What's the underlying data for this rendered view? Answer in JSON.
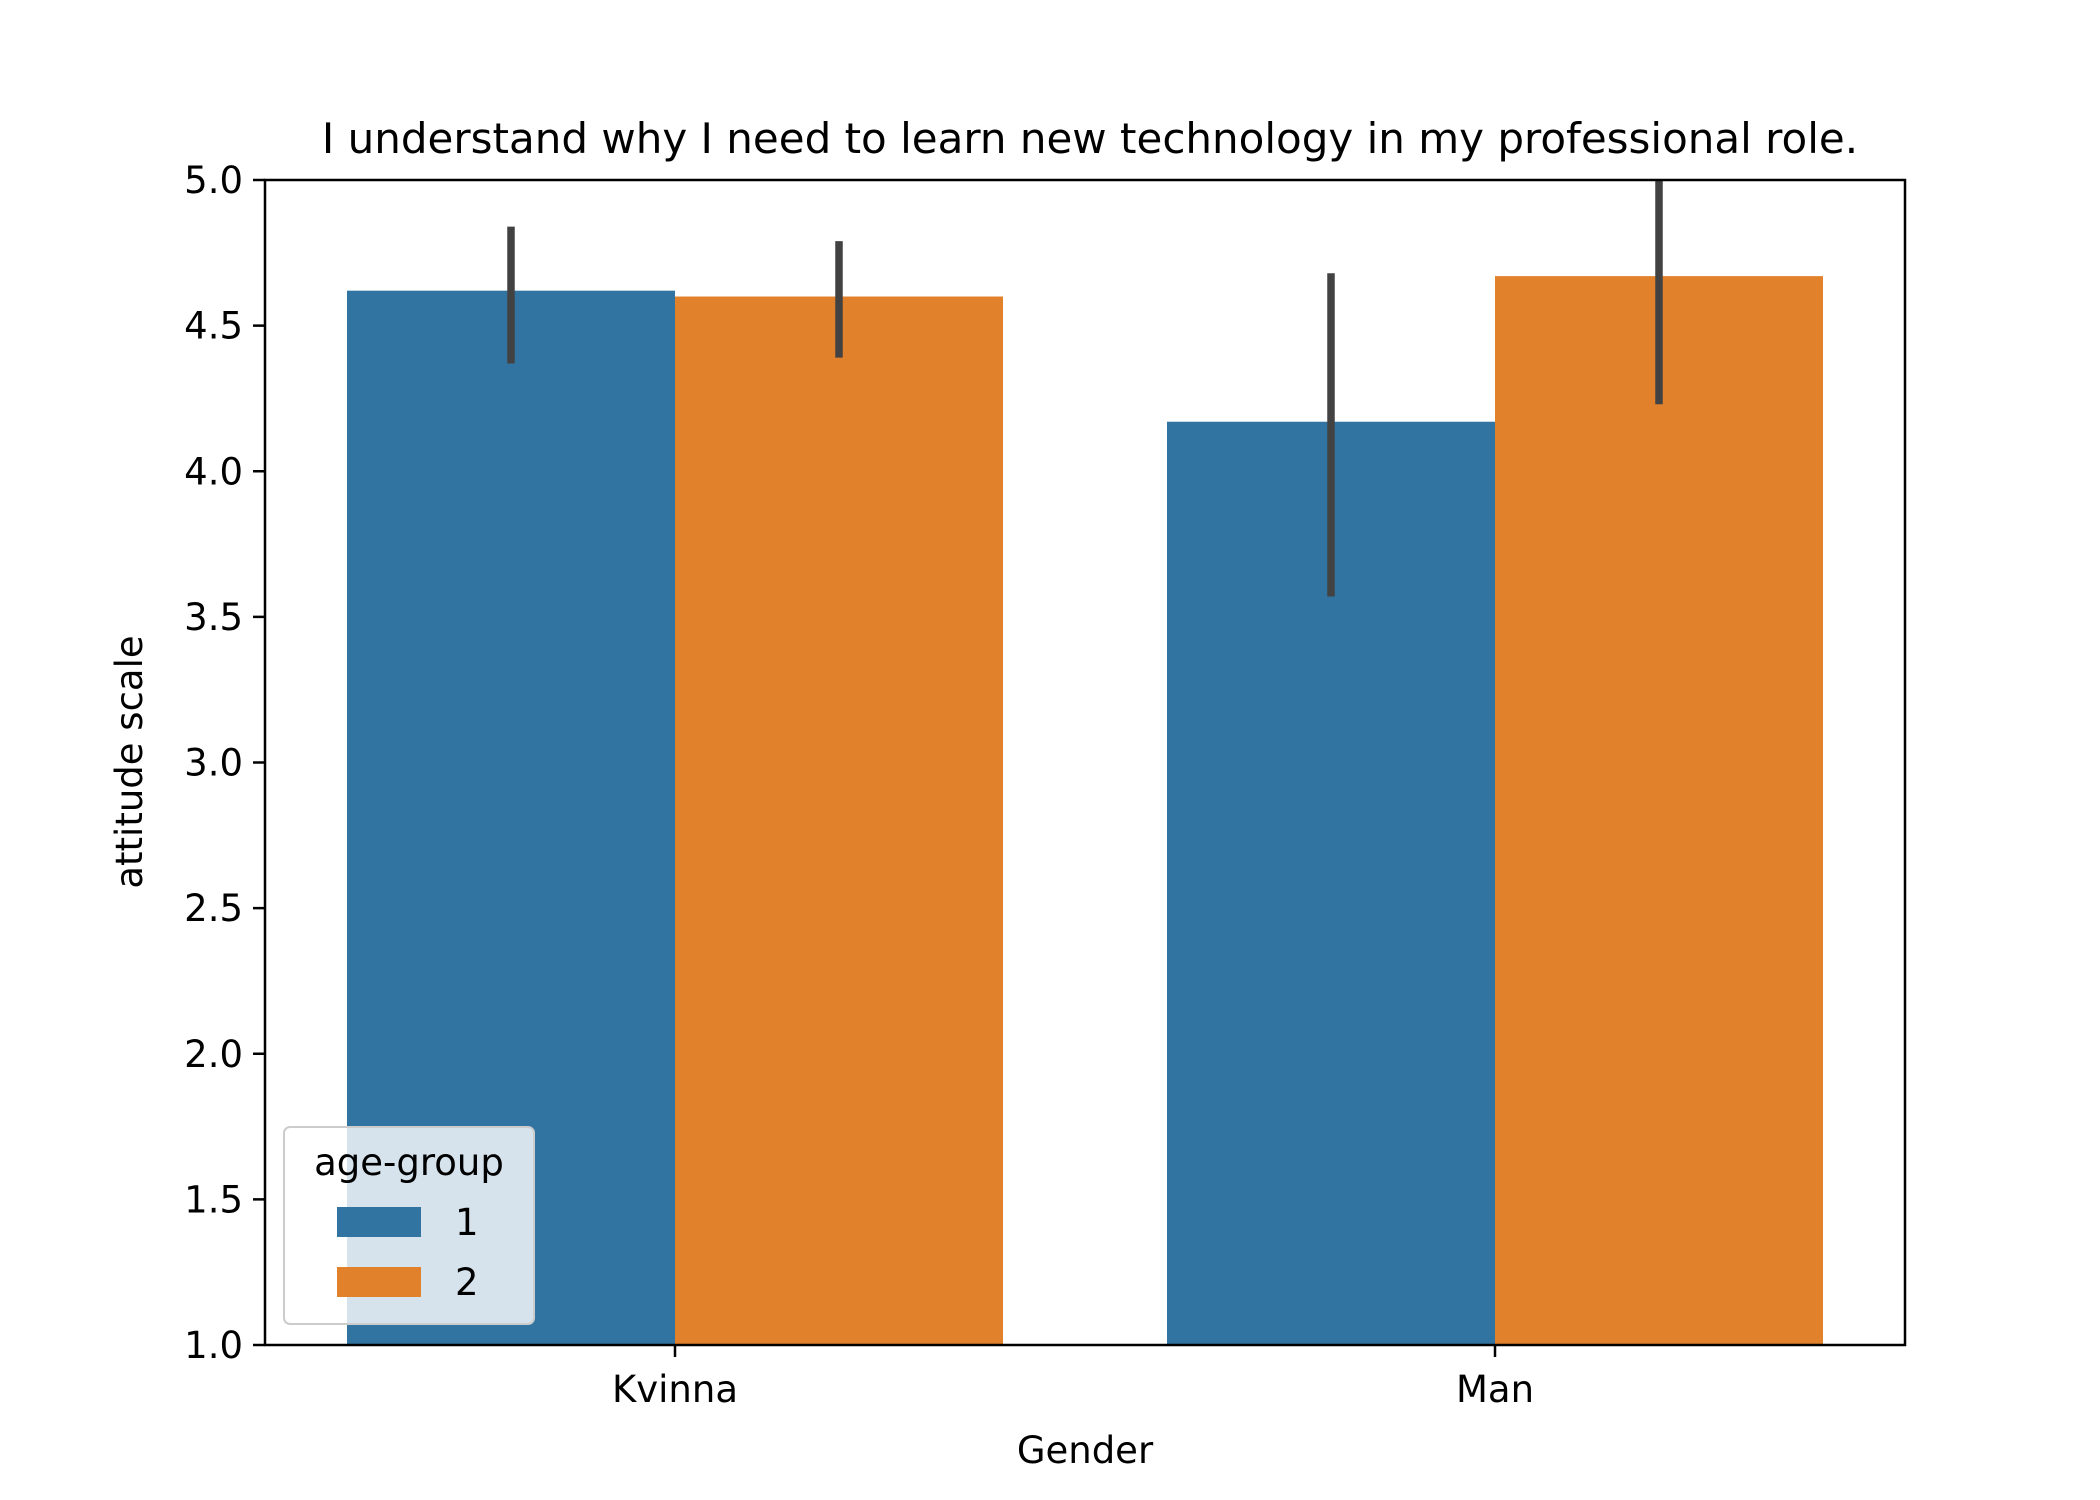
{
  "chart_data": {
    "type": "bar",
    "title": "I understand why I need to learn new technology in my professional role.",
    "xlabel": "Gender",
    "ylabel": "attitude scale",
    "categories": [
      "Kvinna",
      "Man"
    ],
    "ylim": [
      1.0,
      5.0
    ],
    "yticks": [
      "1.0",
      "1.5",
      "2.0",
      "2.5",
      "3.0",
      "3.5",
      "4.0",
      "4.5",
      "5.0"
    ],
    "series": [
      {
        "name": "1",
        "color": "#3274a1",
        "values": [
          4.62,
          4.17
        ],
        "err_low": [
          4.37,
          3.57
        ],
        "err_high": [
          4.84,
          4.68
        ]
      },
      {
        "name": "2",
        "color": "#e1812c",
        "values": [
          4.6,
          4.67
        ],
        "err_low": [
          4.39,
          4.23
        ],
        "err_high": [
          4.79,
          5.0
        ]
      }
    ],
    "errorbar_color": "#424242",
    "grid": false,
    "legend": {
      "title": "age-group",
      "placement": "lower-left"
    }
  }
}
